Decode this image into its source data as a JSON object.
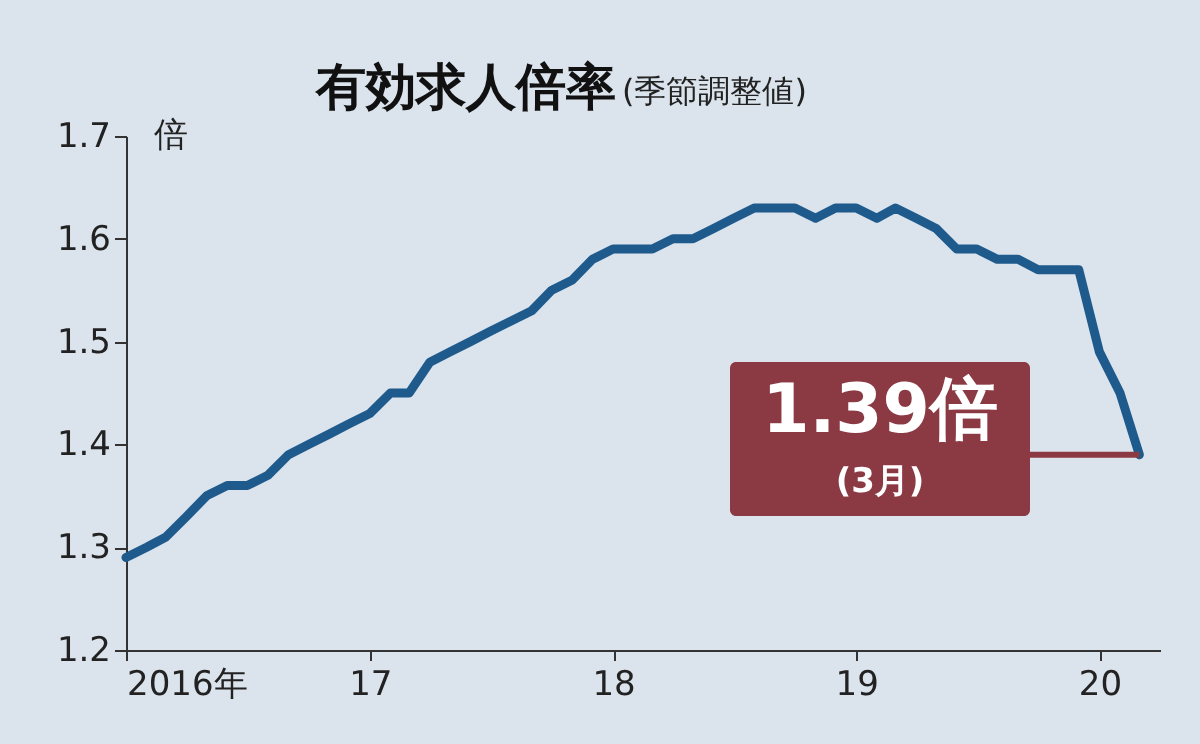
{
  "chart_data": {
    "type": "line",
    "title": "有効求人倍率",
    "subtitle": "(季節調整値)",
    "ylabel": "倍",
    "x": [
      "2016-01",
      "2016-02",
      "2016-03",
      "2016-04",
      "2016-05",
      "2016-06",
      "2016-07",
      "2016-08",
      "2016-09",
      "2016-10",
      "2016-11",
      "2016-12",
      "2017-01",
      "2017-02",
      "2017-03",
      "2017-04",
      "2017-05",
      "2017-06",
      "2017-07",
      "2017-08",
      "2017-09",
      "2017-10",
      "2017-11",
      "2017-12",
      "2018-01",
      "2018-02",
      "2018-03",
      "2018-04",
      "2018-05",
      "2018-06",
      "2018-07",
      "2018-08",
      "2018-09",
      "2018-10",
      "2018-11",
      "2018-12",
      "2019-01",
      "2019-02",
      "2019-03",
      "2019-04",
      "2019-05",
      "2019-06",
      "2019-07",
      "2019-08",
      "2019-09",
      "2019-10",
      "2019-11",
      "2019-12",
      "2020-01",
      "2020-02",
      "2020-03"
    ],
    "series": [
      {
        "color": "#1f5a8c",
        "values": [
          1.29,
          1.3,
          1.31,
          1.33,
          1.35,
          1.36,
          1.36,
          1.37,
          1.39,
          1.4,
          1.41,
          1.42,
          1.43,
          1.45,
          1.45,
          1.48,
          1.49,
          1.5,
          1.51,
          1.52,
          1.53,
          1.55,
          1.56,
          1.58,
          1.59,
          1.59,
          1.59,
          1.6,
          1.6,
          1.61,
          1.62,
          1.63,
          1.63,
          1.63,
          1.62,
          1.63,
          1.63,
          1.62,
          1.63,
          1.62,
          1.61,
          1.59,
          1.59,
          1.58,
          1.58,
          1.57,
          1.57,
          1.57,
          1.49,
          1.45,
          1.39
        ]
      }
    ],
    "annotations": [
      {
        "text": "1.39倍",
        "x": "2020-03",
        "y": 1.39
      },
      "(3月)"
    ],
    "xlim": [
      "2016-01",
      "2020-04"
    ],
    "xticks": [
      {
        "value": "2016-01",
        "label": "2016年"
      },
      {
        "value": "2017-01",
        "label": "17"
      },
      {
        "value": "2018-01",
        "label": "18"
      },
      {
        "value": "2019-01",
        "label": "19"
      },
      {
        "value": "2020-01",
        "label": "20"
      }
    ],
    "ylim": [
      1.2,
      1.7
    ],
    "yticks": [
      1.2,
      1.3,
      1.4,
      1.5,
      1.6,
      1.7
    ],
    "grid": false,
    "line_style": "solid",
    "marker": "none"
  }
}
